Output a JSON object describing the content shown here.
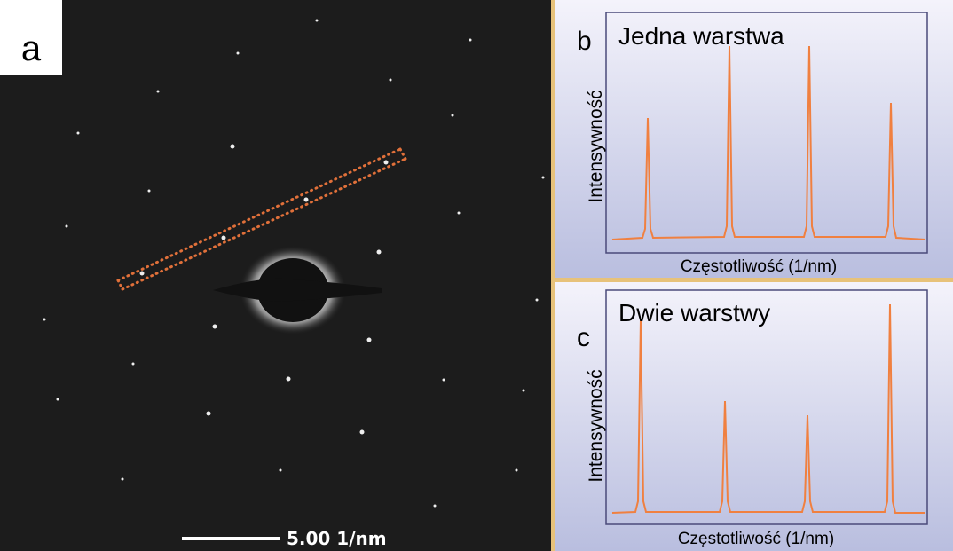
{
  "panels": {
    "a": {
      "label": "a",
      "scale_bar": "5.00 1/nm"
    },
    "b": {
      "label": "b",
      "title": "Jedna warstwa",
      "y_label": "Intensywność",
      "x_label": "Częstotliwość (1/nm)"
    },
    "c": {
      "label": "c",
      "title": "Dwie warstwy",
      "y_label": "Intensywność",
      "x_label": "Częstotliwość (1/nm)"
    }
  }
}
